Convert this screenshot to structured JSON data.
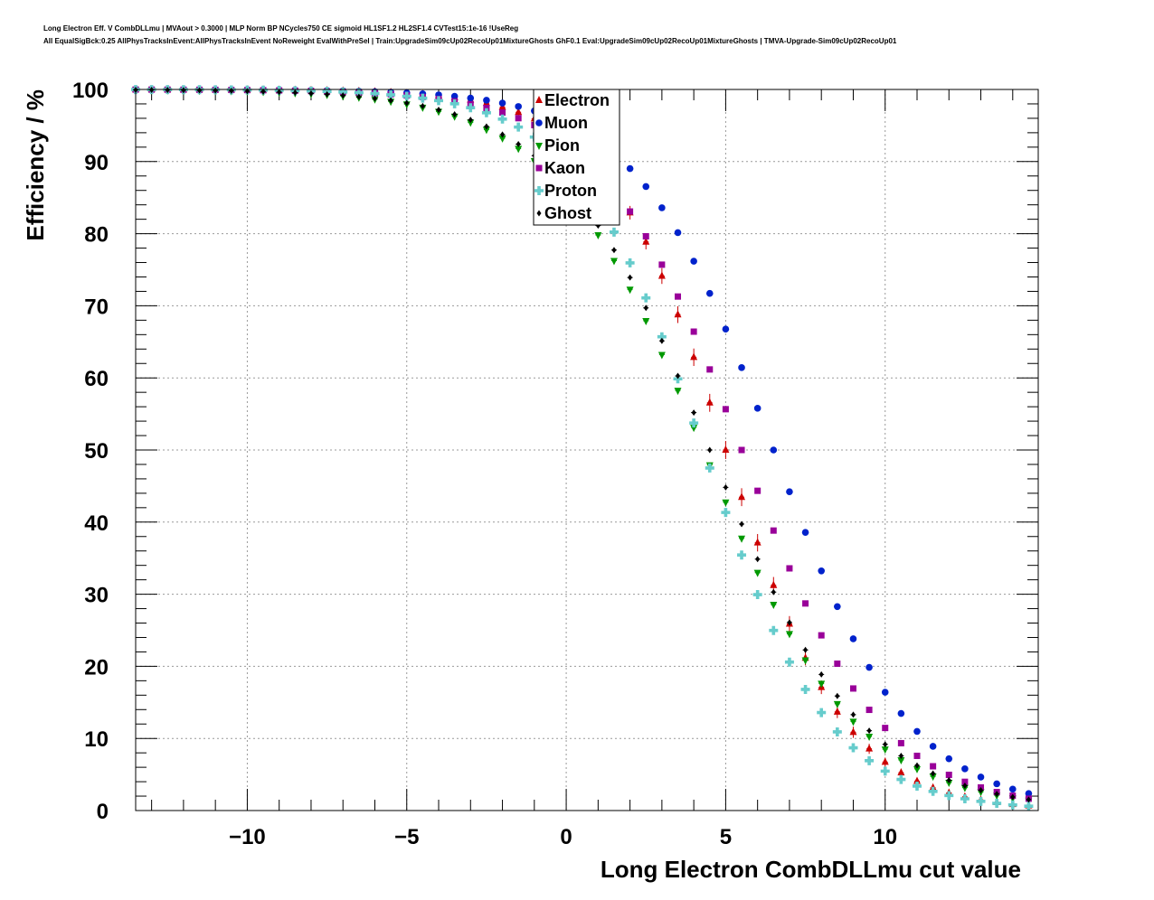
{
  "header": {
    "title_line1": "Long Electron Eff. V CombDLLmu | MVAout > 0.3000 | MLP Norm BP NCycles750 CE sigmoid HL1SF1.2 HL2SF1.4 CVTest15:1e-16 !UseReg",
    "title_line2": "All EqualSigBck:0.25 AllPhysTracksInEvent:AllPhysTracksInEvent NoReweight EvalWithPreSel | Train:UpgradeSim09cUp02RecoUp01MixtureGhosts GhF0.1 Eval:UpgradeSim09cUp02RecoUp01MixtureGhosts | TMVA-Upgrade-Sim09cUp02RecoUp01"
  },
  "chart_data": {
    "type": "scatter",
    "xlabel": "Long Electron CombDLLmu cut value",
    "ylabel": "Efficiency / %",
    "xlim": [
      -13.5,
      14.8
    ],
    "ylim": [
      0,
      100
    ],
    "x_ticks": [
      -10,
      -5,
      0,
      5,
      10
    ],
    "x_tick_labels": [
      "−10",
      "−5",
      "0",
      "5",
      "10"
    ],
    "y_ticks": [
      0,
      10,
      20,
      30,
      40,
      50,
      60,
      70,
      80,
      90,
      100
    ],
    "y_tick_labels": [
      "0",
      "10",
      "20",
      "30",
      "40",
      "50",
      "60",
      "70",
      "80",
      "90",
      "100"
    ],
    "grid": true,
    "legend_position": "top-center",
    "x_bins": {
      "start": -13.5,
      "step": 0.5,
      "count": 57
    },
    "series": [
      {
        "name": "Electron",
        "color": "#cc0000",
        "marker": "triangle",
        "mid": 5.0,
        "scale": 1.9,
        "err": 2.5
      },
      {
        "name": "Muon",
        "color": "#0022cc",
        "marker": "circle",
        "mid": 6.5,
        "scale": 2.15,
        "err": 0.3
      },
      {
        "name": "Pion",
        "color": "#009900",
        "marker": "triangle-down",
        "mid": 4.3,
        "scale": 2.4,
        "err": 0.4
      },
      {
        "name": "Kaon",
        "color": "#990099",
        "marker": "square",
        "mid": 5.5,
        "scale": 2.2,
        "err": 0.4
      },
      {
        "name": "Proton",
        "color": "#66cccc",
        "marker": "cross",
        "mid": 4.3,
        "scale": 2.0,
        "err": 0.8
      },
      {
        "name": "Ghost",
        "color": "#000000",
        "marker": "diamond",
        "mid": 4.5,
        "scale": 2.4,
        "err": 0.5
      }
    ]
  }
}
